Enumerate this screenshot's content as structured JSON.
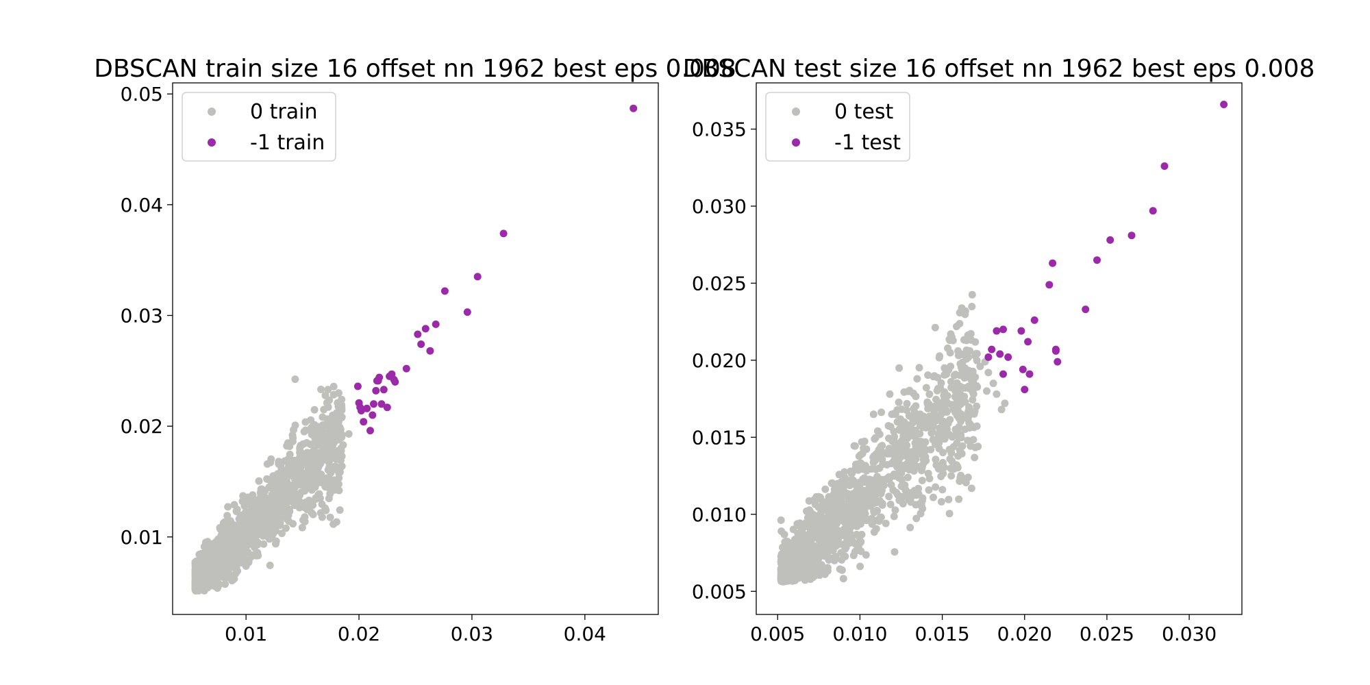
{
  "colors": {
    "inlier": "#bfbfbb",
    "outlier": "#9b2aa8"
  },
  "chart_data": [
    {
      "type": "scatter",
      "title": "DBSCAN train size 16 offset nn 1962 best eps 0.008",
      "xlim": [
        0.0035,
        0.0465
      ],
      "ylim": [
        0.003,
        0.051
      ],
      "xticks": [
        0.01,
        0.02,
        0.03,
        0.04
      ],
      "xtick_labels": [
        "0.01",
        "0.02",
        "0.03",
        "0.04"
      ],
      "yticks": [
        0.01,
        0.02,
        0.03,
        0.04,
        0.05
      ],
      "ytick_labels": [
        "0.01",
        "0.02",
        "0.03",
        "0.04",
        "0.05"
      ],
      "grid": false,
      "legend": "upper-left",
      "series": [
        {
          "name": "0 train",
          "color": "#bfbfbb",
          "cluster": {
            "count": 1500,
            "x_range": [
              0.0055,
              0.0185
            ],
            "slope": 1.0,
            "intercept": 0.0005,
            "spread": 0.0018,
            "seed": 11
          },
          "x": [
            0.0178,
            0.0183,
            0.0191,
            0.0186,
            0.0175,
            0.0172,
            0.0168,
            0.0163,
            0.0158,
            0.0179,
            0.0167,
            0.0184,
            0.0155,
            0.0152
          ],
          "y": [
            0.0205,
            0.0199,
            0.0193,
            0.0183,
            0.0187,
            0.0178,
            0.0201,
            0.0176,
            0.0173,
            0.0163,
            0.0195,
            0.0172,
            0.015,
            0.0118
          ]
        },
        {
          "name": "-1 train",
          "color": "#9b2aa8",
          "x": [
            0.0199,
            0.02,
            0.0202,
            0.0204,
            0.0207,
            0.021,
            0.0213,
            0.0215,
            0.0217,
            0.0218,
            0.022,
            0.0222,
            0.0225,
            0.0227,
            0.0229,
            0.0231,
            0.0232,
            0.0242,
            0.0201,
            0.0212,
            0.0216,
            0.0252,
            0.0255,
            0.0259,
            0.0263,
            0.0268,
            0.0276,
            0.0296,
            0.0305,
            0.0328,
            0.0443
          ],
          "y": [
            0.0236,
            0.0221,
            0.0214,
            0.0204,
            0.0216,
            0.0196,
            0.022,
            0.0232,
            0.0241,
            0.0244,
            0.022,
            0.0233,
            0.0217,
            0.0245,
            0.0247,
            0.0242,
            0.024,
            0.0252,
            0.0217,
            0.021,
            0.0241,
            0.0283,
            0.0274,
            0.0288,
            0.0268,
            0.0292,
            0.0322,
            0.0303,
            0.0335,
            0.0374,
            0.0487
          ]
        }
      ]
    },
    {
      "type": "scatter",
      "title": "DBSCAN test size 16 offset nn 1962 best eps 0.008",
      "xlim": [
        0.0037,
        0.0332
      ],
      "ylim": [
        0.0035,
        0.038
      ],
      "xticks": [
        0.005,
        0.01,
        0.015,
        0.02,
        0.025,
        0.03
      ],
      "xtick_labels": [
        "0.005",
        "0.010",
        "0.015",
        "0.020",
        "0.025",
        "0.030"
      ],
      "yticks": [
        0.005,
        0.01,
        0.015,
        0.02,
        0.025,
        0.03,
        0.035
      ],
      "ytick_labels": [
        "0.005",
        "0.010",
        "0.015",
        "0.020",
        "0.025",
        "0.030",
        "0.035"
      ],
      "grid": false,
      "legend": "upper-left",
      "series": [
        {
          "name": "0 test",
          "color": "#bfbfbb",
          "cluster": {
            "count": 1300,
            "x_range": [
              0.0052,
              0.0172
            ],
            "slope": 1.05,
            "intercept": 0.0005,
            "spread": 0.002,
            "seed": 29
          },
          "x": [
            0.0176,
            0.0178,
            0.0181,
            0.0183,
            0.0186,
            0.0188,
            0.0173,
            0.017,
            0.0166,
            0.0162,
            0.0158,
            0.0155,
            0.0177,
            0.0169
          ],
          "y": [
            0.0199,
            0.0192,
            0.0185,
            0.0178,
            0.0168,
            0.0172,
            0.0196,
            0.0189,
            0.0183,
            0.0175,
            0.0166,
            0.0196,
            0.018,
            0.0178
          ]
        },
        {
          "name": "-1 test",
          "color": "#9b2aa8",
          "x": [
            0.0178,
            0.018,
            0.0183,
            0.0185,
            0.0187,
            0.0187,
            0.019,
            0.0198,
            0.0199,
            0.02,
            0.0202,
            0.0203,
            0.0206,
            0.0215,
            0.0217,
            0.0219,
            0.0219,
            0.022,
            0.0237,
            0.0244,
            0.0252,
            0.0265,
            0.0278,
            0.0285,
            0.0321
          ],
          "y": [
            0.0202,
            0.0207,
            0.0219,
            0.0204,
            0.022,
            0.0191,
            0.0202,
            0.0219,
            0.0194,
            0.0181,
            0.0212,
            0.0191,
            0.0226,
            0.0249,
            0.0263,
            0.0206,
            0.0207,
            0.0199,
            0.0233,
            0.0265,
            0.0278,
            0.0281,
            0.0297,
            0.0326,
            0.0366
          ]
        }
      ]
    }
  ]
}
